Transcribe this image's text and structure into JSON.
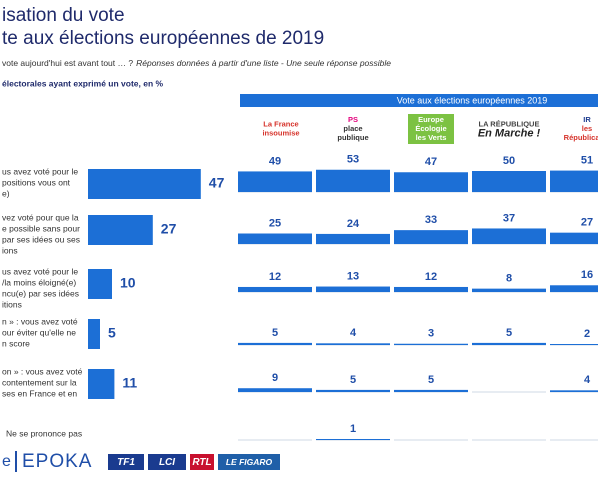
{
  "header": {
    "title_lines": [
      "isation du vote",
      "te aux élections européennes de 2019"
    ],
    "question": "vote aujourd'hui est avant tout … ?",
    "question_note": "Réponses données à partir d'une liste - Une seule réponse possible",
    "base": "électorales ayant exprimé un vote, en %"
  },
  "table": {
    "group_header": "Vote aux élections européennes 2019",
    "parties": [
      {
        "lines": [
          "La France",
          "insoumise"
        ]
      },
      {
        "lines": [
          "PS",
          "place",
          "publique"
        ]
      },
      {
        "lines": [
          "Europe",
          "Écologie",
          "les Verts"
        ]
      },
      {
        "lines": [
          "LA RÉPUBLIQUE",
          "En Marche !"
        ]
      },
      {
        "lines": [
          "IR",
          "les",
          "Républicains"
        ]
      }
    ],
    "rows": [
      {
        "label_lines": [
          "us avez voté pour le",
          "positions vous ont",
          "e)"
        ],
        "total": 47,
        "values": [
          49,
          53,
          47,
          50,
          51
        ]
      },
      {
        "label_lines": [
          "vez voté pour que la",
          "e possible sans pour",
          "par ses idées ou ses",
          "ions"
        ],
        "total": 27,
        "values": [
          25,
          24,
          33,
          37,
          27
        ]
      },
      {
        "label_lines": [
          "us avez voté pour le",
          "/la moins éloigné(e)",
          "ncu(e) par ses idées",
          "itions"
        ],
        "total": 10,
        "values": [
          12,
          13,
          12,
          8,
          16
        ]
      },
      {
        "label_lines": [
          "n » : vous avez voté",
          "our éviter qu'elle ne",
          "n score"
        ],
        "total": 5,
        "values": [
          5,
          4,
          3,
          5,
          2
        ]
      },
      {
        "label_lines": [
          "on » : vous avez voté",
          "contentement sur la",
          "ses en France et en"
        ],
        "total": 11,
        "values": [
          9,
          5,
          5,
          null,
          4
        ]
      },
      {
        "label_lines": [
          "Ne se prononce pas"
        ],
        "total": null,
        "values": [
          null,
          1,
          null,
          null,
          null
        ]
      }
    ]
  },
  "footer": {
    "logos": [
      "e",
      "EPOKA",
      "TF1",
      "LCI",
      "RTL",
      "LE FIGARO"
    ]
  }
}
